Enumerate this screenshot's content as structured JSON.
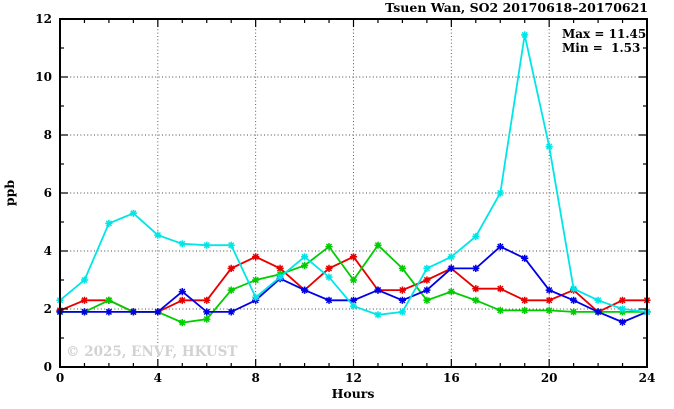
{
  "header": {
    "title": "Tsuen Wan, SO2 20170618–20170621"
  },
  "annotation": {
    "max_label": "Max = 11.45",
    "min_label": "Min =  1.53"
  },
  "watermark": "© 2025, ENVF, HKUST",
  "chart_data": {
    "type": "line",
    "title": "Tsuen Wan, SO2 20170618–20170621",
    "xlabel": "Hours",
    "ylabel": "ppb",
    "xlim": [
      0,
      24
    ],
    "ylim": [
      0,
      12
    ],
    "x_major_ticks": [
      0,
      4,
      8,
      12,
      16,
      20,
      24
    ],
    "y_major_ticks": [
      0,
      2,
      4,
      6,
      8,
      10,
      12
    ],
    "x_minor_step": 1,
    "y_minor_step": 1,
    "grid": "dotted lines at major ticks, mirrored inward ticks on all borders",
    "legend_position": "none",
    "stats": {
      "max": 11.45,
      "min": 1.53
    },
    "x": [
      0,
      1,
      2,
      3,
      4,
      5,
      6,
      7,
      8,
      9,
      10,
      11,
      12,
      13,
      14,
      15,
      16,
      17,
      18,
      19,
      20,
      21,
      22,
      23,
      24
    ],
    "series": [
      {
        "name": "red",
        "color": "#e60000",
        "values": [
          1.95,
          2.3,
          2.3,
          1.9,
          1.9,
          2.3,
          2.3,
          3.4,
          3.8,
          3.4,
          2.65,
          3.4,
          3.8,
          2.65,
          2.65,
          3.0,
          3.4,
          2.7,
          2.7,
          2.3,
          2.3,
          2.65,
          1.9,
          2.3,
          2.3
        ]
      },
      {
        "name": "green",
        "color": "#00cc00",
        "values": [
          1.9,
          1.9,
          2.3,
          1.9,
          1.9,
          1.53,
          1.65,
          2.65,
          3.0,
          3.2,
          3.5,
          4.15,
          3.0,
          4.2,
          3.4,
          2.3,
          2.6,
          2.3,
          1.95,
          1.95,
          1.95,
          1.9,
          1.9,
          1.9,
          1.9
        ]
      },
      {
        "name": "blue",
        "color": "#0000e6",
        "values": [
          1.9,
          1.9,
          1.9,
          1.9,
          1.9,
          2.6,
          1.9,
          1.9,
          2.3,
          3.05,
          2.65,
          2.3,
          2.3,
          2.65,
          2.3,
          2.65,
          3.4,
          3.4,
          4.15,
          3.75,
          2.65,
          2.3,
          1.9,
          1.55,
          1.9
        ]
      },
      {
        "name": "cyan",
        "color": "#00e6e6",
        "values": [
          2.3,
          3.0,
          4.95,
          5.3,
          4.55,
          4.25,
          4.2,
          4.2,
          2.4,
          3.1,
          3.8,
          3.1,
          2.1,
          1.8,
          1.9,
          3.4,
          3.8,
          4.5,
          6.0,
          11.45,
          7.6,
          2.7,
          2.3,
          2.0,
          1.9
        ]
      }
    ]
  }
}
